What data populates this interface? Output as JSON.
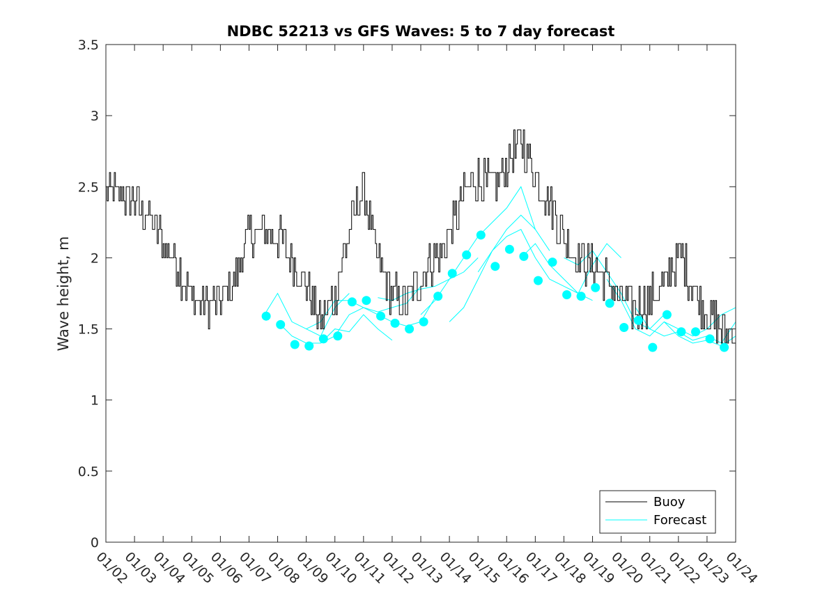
{
  "chart_data": {
    "type": "line",
    "title": "NDBC 52213 vs GFS Waves: 5 to 7 day forecast",
    "xlabel": "",
    "ylabel": "Wave height, m",
    "xlim": [
      0,
      22
    ],
    "ylim": [
      0,
      3.5
    ],
    "yticks": [
      0,
      0.5,
      1,
      1.5,
      2,
      2.5,
      3,
      3.5
    ],
    "ytick_labels": [
      "0",
      "0.5",
      "1",
      "1.5",
      "2",
      "2.5",
      "3",
      "3.5"
    ],
    "xtick_labels": [
      "01/02",
      "01/03",
      "01/04",
      "01/05",
      "01/06",
      "01/07",
      "01/08",
      "01/09",
      "01/10",
      "01/11",
      "01/12",
      "01/13",
      "01/14",
      "01/15",
      "01/16",
      "01/17",
      "01/18",
      "01/19",
      "01/20",
      "01/21",
      "01/22",
      "01/23",
      "01/24"
    ],
    "legend": {
      "position": "bottom-right",
      "entries": [
        "Buoy",
        "Forecast"
      ]
    },
    "colors": {
      "buoy": "#000000",
      "forecast": "#00FFFF"
    },
    "series": [
      {
        "name": "Buoy",
        "x": [
          0,
          0.5,
          1,
          1.5,
          2,
          2.5,
          3,
          3.5,
          4,
          4.5,
          5,
          5.5,
          6,
          6.5,
          7,
          7.5,
          8,
          8.5,
          9,
          9.5,
          10,
          10.5,
          11,
          11.5,
          12,
          12.5,
          13,
          13.5,
          14,
          14.5,
          15,
          15.5,
          16,
          16.5,
          17,
          17.5,
          18,
          18.5,
          19,
          19.5,
          20,
          20.5,
          21,
          21.5,
          22
        ],
        "values": [
          2.45,
          2.45,
          2.4,
          2.3,
          2.1,
          1.95,
          1.7,
          1.68,
          1.7,
          1.85,
          2.15,
          2.2,
          2.15,
          2.0,
          1.8,
          1.55,
          1.75,
          2.2,
          2.5,
          1.95,
          1.75,
          1.7,
          1.85,
          2.0,
          2.15,
          2.45,
          2.55,
          2.5,
          2.65,
          2.85,
          2.55,
          2.4,
          2.15,
          2.0,
          1.95,
          1.85,
          1.7,
          1.65,
          1.7,
          1.8,
          2.05,
          1.8,
          1.6,
          1.5,
          1.5
        ]
      },
      {
        "name": "Forecast",
        "runs": [
          {
            "x": [
              5.6,
              6.0,
              6.5,
              7.0,
              7.5,
              8.0,
              8.5
            ],
            "values": [
              1.62,
              1.75,
              1.55,
              1.5,
              1.45,
              1.65,
              1.75
            ]
          },
          {
            "x": [
              6.0,
              6.5,
              7.0,
              7.5,
              8.0,
              8.5,
              9.0,
              9.5,
              10.0
            ],
            "values": [
              1.55,
              1.45,
              1.4,
              1.4,
              1.5,
              1.48,
              1.6,
              1.5,
              1.42
            ]
          },
          {
            "x": [
              7.0,
              7.5,
              8.0,
              8.5,
              9.0,
              9.5,
              10.0,
              10.5,
              11.0
            ],
            "values": [
              1.5,
              1.55,
              1.7,
              1.7,
              1.65,
              1.62,
              1.65,
              1.68,
              1.8
            ]
          },
          {
            "x": [
              7.5,
              8.0,
              8.5,
              9.0,
              9.5,
              10.0,
              10.5,
              11.0,
              11.5
            ],
            "values": [
              1.4,
              1.45,
              1.6,
              1.65,
              1.6,
              1.55,
              1.52,
              1.55,
              1.72
            ]
          },
          {
            "x": [
              9.5,
              10.0,
              10.5,
              11.0,
              11.5,
              12.0,
              12.5,
              13.0
            ],
            "values": [
              1.72,
              1.7,
              1.75,
              1.78,
              1.8,
              1.85,
              1.9,
              2.0
            ]
          },
          {
            "x": [
              11.0,
              11.5,
              12.0,
              12.5,
              13.0,
              13.5,
              14.0,
              14.5,
              15.0
            ],
            "values": [
              1.6,
              1.7,
              1.85,
              2.0,
              2.15,
              2.25,
              2.35,
              2.5,
              2.2
            ]
          },
          {
            "x": [
              12.0,
              12.5,
              13.0,
              13.5,
              14.0,
              14.5,
              15.0,
              15.5
            ],
            "values": [
              1.55,
              1.65,
              1.85,
              2.05,
              2.2,
              2.3,
              2.2,
              2.05
            ]
          },
          {
            "x": [
              13.0,
              13.5,
              14.0,
              14.5,
              15.0,
              15.5,
              16.0,
              16.5,
              17.0
            ],
            "values": [
              1.9,
              2.05,
              2.15,
              2.2,
              2.0,
              1.85,
              1.8,
              1.75,
              1.7
            ]
          },
          {
            "x": [
              14.5,
              15.0,
              15.5,
              16.0,
              16.5,
              17.0,
              17.5,
              18.0
            ],
            "values": [
              2.0,
              2.1,
              1.95,
              1.85,
              1.75,
              1.95,
              2.1,
              2.0
            ]
          },
          {
            "x": [
              16.0,
              16.5,
              17.0,
              17.5,
              18.0,
              18.5,
              19.0,
              19.5
            ],
            "values": [
              2.0,
              1.95,
              2.05,
              1.9,
              1.75,
              1.55,
              1.5,
              1.6
            ]
          },
          {
            "x": [
              17.5,
              18.0,
              18.5,
              19.0,
              19.5,
              20.0,
              20.5,
              21.0,
              21.5,
              22.0
            ],
            "values": [
              1.85,
              1.7,
              1.5,
              1.45,
              1.55,
              1.5,
              1.45,
              1.5,
              1.6,
              1.65
            ]
          },
          {
            "x": [
              18.5,
              19.0,
              19.5,
              20.0,
              20.5,
              21.0,
              21.5,
              22.0
            ],
            "values": [
              1.65,
              1.5,
              1.45,
              1.48,
              1.42,
              1.45,
              1.4,
              1.55
            ]
          },
          {
            "x": [
              19.5,
              20.0,
              20.5,
              21.0,
              21.5,
              22.0
            ],
            "values": [
              1.55,
              1.45,
              1.4,
              1.42,
              1.38,
              1.45
            ]
          }
        ],
        "markers": {
          "x": [
            5.6,
            6.1,
            6.6,
            7.1,
            7.6,
            8.1,
            8.6,
            9.1,
            9.6,
            10.1,
            10.6,
            11.1,
            11.6,
            12.1,
            12.6,
            13.1,
            13.6,
            14.1,
            14.6,
            15.1,
            15.6,
            16.1,
            16.6,
            17.1,
            17.6,
            18.1,
            18.6,
            19.1,
            19.6,
            20.1,
            20.6,
            21.1,
            21.6
          ],
          "values": [
            1.59,
            1.53,
            1.39,
            1.38,
            1.43,
            1.45,
            1.69,
            1.7,
            1.59,
            1.54,
            1.5,
            1.55,
            1.73,
            1.89,
            2.02,
            2.16,
            1.94,
            2.06,
            2.01,
            1.84,
            1.97,
            1.74,
            1.73,
            1.79,
            1.68,
            1.51,
            1.56,
            1.37,
            1.6,
            1.48,
            1.48,
            1.43,
            1.37
          ]
        }
      }
    ]
  }
}
